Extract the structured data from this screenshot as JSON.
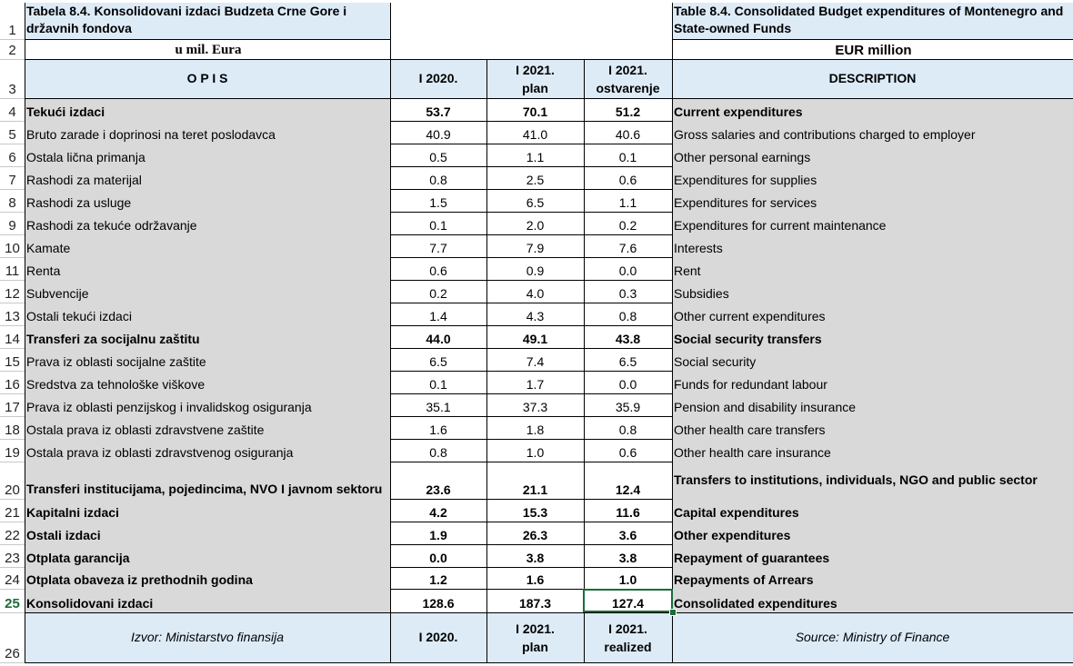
{
  "header": {
    "title_me": "Tabela 8.4. Konsolidovani izdaci Budzeta Crne Gore i državnih fondova",
    "title_en": "Table 8.4. Consolidated Budget expenditures of Montenegro and State-owned Funds",
    "unit_me": "u mil. Eura",
    "unit_en": "EUR million",
    "col_desc_me": "O P I S",
    "col_2020": "I 2020.",
    "col_2021_plan_1": "I 2021.",
    "col_2021_plan_2": "plan",
    "col_2021_real_1": "I 2021.",
    "col_2021_real_2": "ostvarenje",
    "col_desc_en": "DESCRIPTION"
  },
  "row_numbers": [
    "1",
    "2",
    "3",
    "4",
    "5",
    "6",
    "7",
    "8",
    "9",
    "10",
    "11",
    "12",
    "13",
    "14",
    "15",
    "16",
    "17",
    "18",
    "19",
    "20",
    "21",
    "22",
    "23",
    "24",
    "25",
    "26"
  ],
  "rows": [
    {
      "me": "Tekući izdaci",
      "v2020": "53.7",
      "plan": "70.1",
      "real": "51.2",
      "en": "Current expenditures",
      "bold": true
    },
    {
      "me": "Bruto zarade i doprinosi na teret poslodavca",
      "v2020": "40.9",
      "plan": "41.0",
      "real": "40.6",
      "en": "Gross salaries and contributions charged to employer",
      "bold": false
    },
    {
      "me": "Ostala lična primanja",
      "v2020": "0.5",
      "plan": "1.1",
      "real": "0.1",
      "en": "Other personal earnings",
      "bold": false
    },
    {
      "me": "Rashodi za materijal",
      "v2020": "0.8",
      "plan": "2.5",
      "real": "0.6",
      "en": "Expenditures for supplies",
      "bold": false
    },
    {
      "me": "Rashodi za usluge",
      "v2020": "1.5",
      "plan": "6.5",
      "real": "1.1",
      "en": "Expenditures for services",
      "bold": false
    },
    {
      "me": "Rashodi za tekuće održavanje",
      "v2020": "0.1",
      "plan": "2.0",
      "real": "0.2",
      "en": "Expenditures for current maintenance",
      "bold": false
    },
    {
      "me": "Kamate",
      "v2020": "7.7",
      "plan": "7.9",
      "real": "7.6",
      "en": "Interests",
      "bold": false
    },
    {
      "me": "Renta",
      "v2020": "0.6",
      "plan": "0.9",
      "real": "0.0",
      "en": "Rent",
      "bold": false
    },
    {
      "me": "Subvencije",
      "v2020": "0.2",
      "plan": "4.0",
      "real": "0.3",
      "en": "Subsidies",
      "bold": false
    },
    {
      "me": "Ostali tekući izdaci",
      "v2020": "1.4",
      "plan": "4.3",
      "real": "0.8",
      "en": "Other current expenditures",
      "bold": false
    },
    {
      "me": "Transferi za socijalnu zaštitu",
      "v2020": "44.0",
      "plan": "49.1",
      "real": "43.8",
      "en": "Social security transfers",
      "bold": true
    },
    {
      "me": "Prava iz oblasti socijalne zaštite",
      "v2020": "6.5",
      "plan": "7.4",
      "real": "6.5",
      "en": "Social security",
      "bold": false
    },
    {
      "me": "Sredstva za tehnološke viškove",
      "v2020": "0.1",
      "plan": "1.7",
      "real": "0.0",
      "en": "Funds for redundant labour",
      "bold": false
    },
    {
      "me": "Prava iz oblasti penzijskog i invalidskog osiguranja",
      "v2020": "35.1",
      "plan": "37.3",
      "real": "35.9",
      "en": "Pension and disability insurance",
      "bold": false
    },
    {
      "me": "Ostala prava iz oblasti zdravstvene zaštite",
      "v2020": "1.6",
      "plan": "1.8",
      "real": "0.8",
      "en": "Other health care transfers",
      "bold": false
    },
    {
      "me": "Ostala prava iz oblasti zdravstvenog osiguranja",
      "v2020": "0.8",
      "plan": "1.0",
      "real": "0.6",
      "en": "Other health care insurance",
      "bold": false
    },
    {
      "me": "Transferi institucijama, pojedincima, NVO I javnom sektoru",
      "v2020": "23.6",
      "plan": "21.1",
      "real": "12.4",
      "en": "Transfers to institutions, individuals, NGO and public sector",
      "bold": true
    },
    {
      "me": "Kapitalni izdaci",
      "v2020": "4.2",
      "plan": "15.3",
      "real": "11.6",
      "en": "Capital expenditures",
      "bold": true
    },
    {
      "me": "Ostali izdaci",
      "v2020": "1.9",
      "plan": "26.3",
      "real": "3.6",
      "en": "Other expenditures",
      "bold": true
    },
    {
      "me": "Otplata garancija",
      "v2020": "0.0",
      "plan": "3.8",
      "real": "3.8",
      "en": "Repayment of guarantees",
      "bold": true
    },
    {
      "me": "Otplata obaveza iz prethodnih godina",
      "v2020": "1.2",
      "plan": "1.6",
      "real": "1.0",
      "en": "Repayments of Arrears",
      "bold": true
    },
    {
      "me": "Konsolidovani izdaci",
      "v2020": "128.6",
      "plan": "187.3",
      "real": "127.4",
      "en": "Consolidated expenditures",
      "bold": true
    }
  ],
  "footer": {
    "source_me": "Izvor: Ministarstvo finansija",
    "col_2020": "I 2020.",
    "col_2021_plan_1": "I 2021.",
    "col_2021_plan_2": "plan",
    "col_2021_real_1": "I 2021.",
    "col_2021_real_2": "realized",
    "source_en": "Source: Ministry of Finance"
  },
  "selection": {
    "row": "25",
    "column": "I 2021. ostvarenje"
  },
  "colors": {
    "gray": "#d9d9d9",
    "blue": "#ddebf7",
    "selection": "#1d6b3a"
  }
}
